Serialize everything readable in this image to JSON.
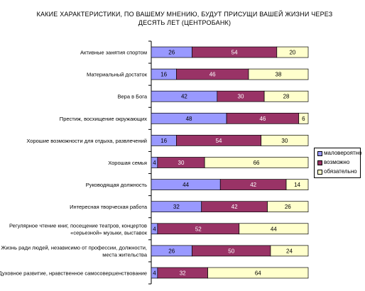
{
  "chart_data": {
    "type": "bar",
    "stacked": "percent",
    "orientation": "horizontal",
    "title": "КАКИЕ ХАРАКТЕРИСТИКИ, ПО ВАШЕМУ МНЕНИЮ, БУДУТ ПРИСУЩИ ВАШЕЙ ЖИЗНИ ЧЕРЕЗ ДЕСЯТЬ ЛЕТ (ЦЕНТРОБАНК)",
    "categories": [
      [
        "Активные занятия спортом"
      ],
      [
        "Материальный достаток"
      ],
      [
        "Вера в Бога"
      ],
      [
        "Престиж, восхищение окружающих"
      ],
      [
        "Хорошие возможности для отдыха, развлечений"
      ],
      [
        "Хорошая семья"
      ],
      [
        "Руководящая должность"
      ],
      [
        "Интересная творческая работа"
      ],
      [
        "Регулярное чтение книг, посещение театров, концертов",
        "«серьезной» музыки, выставок"
      ],
      [
        "Жизнь ради людей, независимо от профессии, должности,",
        "места жительства"
      ],
      [
        "Духовное развитие, нравственное самосовершенствование"
      ]
    ],
    "series": [
      {
        "name": "маловероятно",
        "color": "#9999ff",
        "values": [
          26,
          16,
          42,
          48,
          16,
          4,
          44,
          32,
          4,
          26,
          4
        ]
      },
      {
        "name": "возможно",
        "color": "#993366",
        "values": [
          54,
          46,
          30,
          46,
          54,
          30,
          42,
          42,
          52,
          50,
          32
        ]
      },
      {
        "name": "обязательно",
        "color": "#ffffcc",
        "values": [
          20,
          38,
          28,
          6,
          30,
          66,
          14,
          26,
          44,
          24,
          64
        ]
      }
    ],
    "xlim": [
      0,
      100
    ],
    "grid": false,
    "legend_position": "right"
  }
}
